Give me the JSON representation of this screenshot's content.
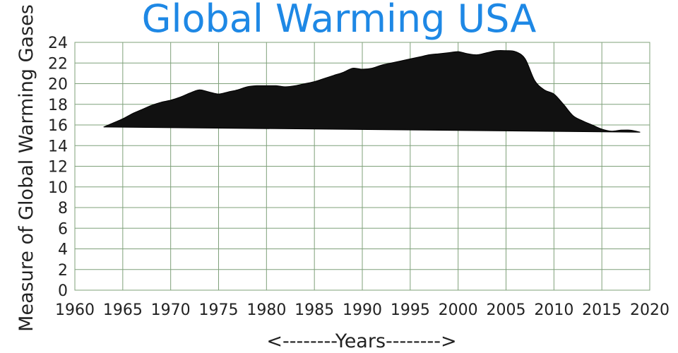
{
  "chart_data": {
    "type": "area",
    "title": "Global Warming USA",
    "xlabel": "<--------Years-------->",
    "ylabel": "Measure of Global Warming Gases",
    "xlim": [
      1960,
      2020
    ],
    "ylim": [
      0,
      24
    ],
    "x_ticks": [
      1960,
      1965,
      1970,
      1975,
      1980,
      1985,
      1990,
      1995,
      2000,
      2005,
      2010,
      2015,
      2020
    ],
    "y_ticks": [
      0,
      2,
      4,
      6,
      8,
      10,
      12,
      14,
      16,
      18,
      20,
      22,
      24
    ],
    "grid": true,
    "colors": {
      "fill": "#111111",
      "grid": "#7fa07a",
      "title": "#1e88e5"
    },
    "series": [
      {
        "upper": {
          "x": [
            1963,
            1964,
            1965,
            1966,
            1967,
            1968,
            1969,
            1970,
            1971,
            1972,
            1973,
            1974,
            1975,
            1976,
            1977,
            1978,
            1979,
            1980,
            1981,
            1982,
            1983,
            1984,
            1985,
            1986,
            1987,
            1988,
            1989,
            1990,
            1991,
            1992,
            1993,
            1994,
            1995,
            1996,
            1997,
            1998,
            1999,
            2000,
            2001,
            2002,
            2003,
            2004,
            2005,
            2006,
            2007,
            2008,
            2009,
            2010,
            2011,
            2012,
            2013,
            2014,
            2015,
            2016,
            2017,
            2018,
            2019
          ],
          "y": [
            15.8,
            16.2,
            16.6,
            17.1,
            17.5,
            17.9,
            18.2,
            18.4,
            18.7,
            19.1,
            19.4,
            19.2,
            19.0,
            19.2,
            19.4,
            19.7,
            19.8,
            19.8,
            19.8,
            19.7,
            19.8,
            20.0,
            20.2,
            20.5,
            20.8,
            21.1,
            21.5,
            21.4,
            21.5,
            21.8,
            22.0,
            22.2,
            22.4,
            22.6,
            22.8,
            22.9,
            23.0,
            23.1,
            22.9,
            22.8,
            23.0,
            23.2,
            23.2,
            23.1,
            22.4,
            20.3,
            19.4,
            19.0,
            18.0,
            16.9,
            16.4,
            16.0,
            15.6,
            15.4,
            15.5,
            15.5,
            15.3
          ]
        },
        "lower": {
          "x": [
            1963,
            2019
          ],
          "y": [
            15.8,
            15.3
          ]
        }
      }
    ]
  }
}
